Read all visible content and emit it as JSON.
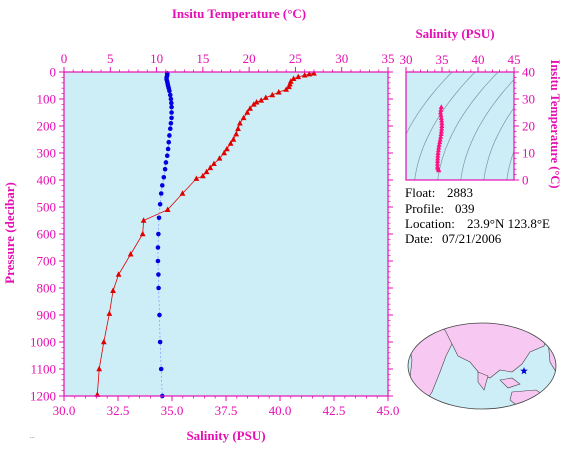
{
  "chart_data": [
    {
      "type": "line",
      "title": "",
      "x_top_label": "Insitu Temperature (°C)",
      "x_bottom_label": "Salinity (PSU)",
      "ylabel": "Pressure (decibar)",
      "temp_range": [
        0,
        35
      ],
      "sal_range": [
        30.0,
        45.0
      ],
      "pressure_range": [
        0,
        1200
      ],
      "temp_ticks": [
        "0",
        "5",
        "10",
        "15",
        "20",
        "25",
        "30",
        "35"
      ],
      "sal_ticks": [
        "30.0",
        "32.5",
        "35.0",
        "37.5",
        "40.0",
        "42.5",
        "45.0"
      ],
      "pressure_ticks": [
        "0",
        "100",
        "200",
        "300",
        "400",
        "500",
        "600",
        "700",
        "800",
        "900",
        "1000",
        "1100",
        "1200"
      ],
      "series": [
        {
          "variable": "temperature",
          "color": "#e00000",
          "marker": "triangle",
          "points": [
            [
              27.0,
              5
            ],
            [
              26.5,
              8
            ],
            [
              26.0,
              12
            ],
            [
              25.3,
              18
            ],
            [
              24.8,
              25
            ],
            [
              24.5,
              35
            ],
            [
              24.4,
              45
            ],
            [
              24.3,
              55
            ],
            [
              24.0,
              65
            ],
            [
              23.2,
              75
            ],
            [
              22.5,
              85
            ],
            [
              21.8,
              95
            ],
            [
              21.3,
              105
            ],
            [
              20.8,
              112
            ],
            [
              20.5,
              120
            ],
            [
              20.1,
              135
            ],
            [
              19.8,
              150
            ],
            [
              19.4,
              170
            ],
            [
              19.0,
              190
            ],
            [
              18.8,
              210
            ],
            [
              18.6,
              230
            ],
            [
              18.3,
              250
            ],
            [
              18.0,
              265
            ],
            [
              17.6,
              285
            ],
            [
              17.3,
              300
            ],
            [
              16.8,
              320
            ],
            [
              16.2,
              340
            ],
            [
              15.8,
              355
            ],
            [
              15.4,
              370
            ],
            [
              15.0,
              385
            ],
            [
              14.3,
              395
            ],
            [
              12.8,
              450
            ],
            [
              11.2,
              510
            ],
            [
              8.6,
              550
            ],
            [
              8.5,
              600
            ],
            [
              7.2,
              675
            ],
            [
              5.9,
              750
            ],
            [
              5.3,
              810
            ],
            [
              4.9,
              895
            ],
            [
              4.3,
              1000
            ],
            [
              3.8,
              1100
            ],
            [
              3.6,
              1195
            ]
          ]
        },
        {
          "variable": "salinity",
          "color": "#0000e0",
          "marker": "circle",
          "points": [
            [
              34.78,
              5
            ],
            [
              34.78,
              12
            ],
            [
              34.75,
              20
            ],
            [
              34.75,
              28
            ],
            [
              34.78,
              36
            ],
            [
              34.8,
              44
            ],
            [
              34.82,
              52
            ],
            [
              34.85,
              60
            ],
            [
              34.88,
              70
            ],
            [
              34.92,
              85
            ],
            [
              34.95,
              100
            ],
            [
              34.97,
              115
            ],
            [
              34.98,
              130
            ],
            [
              34.98,
              150
            ],
            [
              34.98,
              170
            ],
            [
              34.95,
              190
            ],
            [
              34.92,
              210
            ],
            [
              34.88,
              235
            ],
            [
              34.85,
              260
            ],
            [
              34.82,
              285
            ],
            [
              34.78,
              310
            ],
            [
              34.72,
              335
            ],
            [
              34.68,
              360
            ],
            [
              34.62,
              390
            ],
            [
              34.55,
              420
            ],
            [
              34.5,
              450
            ],
            [
              34.45,
              490
            ],
            [
              34.4,
              540
            ],
            [
              34.37,
              600
            ],
            [
              34.35,
              650
            ],
            [
              34.35,
              700
            ],
            [
              34.37,
              750
            ],
            [
              34.38,
              800
            ],
            [
              34.42,
              900
            ],
            [
              34.45,
              1000
            ],
            [
              34.5,
              1100
            ],
            [
              34.55,
              1200
            ]
          ]
        }
      ]
    },
    {
      "type": "scatter",
      "title": "",
      "xlabel": "Salinity (PSU)",
      "ylabel": "Insitu Temperature (°C)",
      "xlim": [
        30,
        45
      ],
      "ylim": [
        0,
        40
      ],
      "x_ticks": [
        "30",
        "35",
        "40",
        "45"
      ],
      "y_ticks": [
        "0",
        "10",
        "20",
        "30",
        "40"
      ],
      "series": [
        {
          "color": "#ff1080",
          "marker": "triangle",
          "points": [
            [
              34.9,
              27.0
            ],
            [
              34.85,
              26.0
            ],
            [
              34.8,
              25.0
            ],
            [
              34.85,
              24.0
            ],
            [
              34.9,
              23.0
            ],
            [
              34.95,
              22.0
            ],
            [
              34.98,
              21.0
            ],
            [
              34.98,
              20.0
            ],
            [
              34.95,
              19.0
            ],
            [
              34.92,
              18.0
            ],
            [
              34.88,
              17.0
            ],
            [
              34.82,
              16.0
            ],
            [
              34.75,
              15.0
            ],
            [
              34.68,
              14.0
            ],
            [
              34.6,
              13.0
            ],
            [
              34.55,
              12.0
            ],
            [
              34.5,
              11.0
            ],
            [
              34.45,
              10.0
            ],
            [
              34.42,
              9.0
            ],
            [
              34.4,
              8.0
            ],
            [
              34.38,
              7.0
            ],
            [
              34.37,
              6.0
            ],
            [
              34.38,
              5.0
            ],
            [
              34.42,
              4.5
            ],
            [
              34.5,
              4.0
            ],
            [
              34.55,
              3.6
            ]
          ]
        }
      ]
    }
  ],
  "info": {
    "float_label": "Float:",
    "float_value": "2883",
    "profile_label": "Profile:",
    "profile_value": "039",
    "location_label": "Location:",
    "location_value": "23.9°N  123.8°E",
    "date_label": "Date:",
    "date_value": "07/21/2006"
  },
  "colors": {
    "axis": "#e60fb3",
    "plot_bg": "#cdeef7",
    "land": "#f6c8f2",
    "ocean": "#cdeef7",
    "marker_star": "#0000e0"
  },
  "footnote": "..."
}
